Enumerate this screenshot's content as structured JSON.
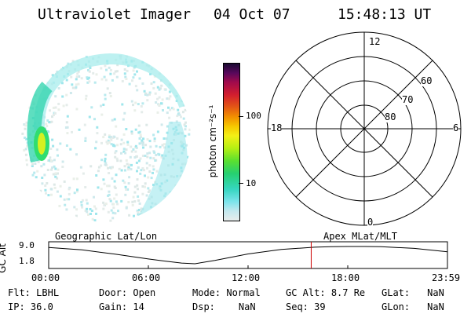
{
  "header": {
    "title": "Ultraviolet Imager",
    "date": "04 Oct 07",
    "time": "15:48:13 UT"
  },
  "colorbar": {
    "unit_label": "photon cm⁻²s⁻¹",
    "ticks": [
      "100",
      "10"
    ]
  },
  "polar": {
    "mlt_labels": {
      "top": "12",
      "left": "18",
      "right": "6",
      "bottom": "0"
    },
    "lat_labels": [
      "60",
      "70",
      "80"
    ]
  },
  "timeline": {
    "left_label": "Geographic Lat/Lon",
    "right_label": "Apex MLat/MLT",
    "y_title": "GC Alt",
    "y_ticks": [
      "9.0",
      "1.8"
    ],
    "x_ticks": [
      "00:00",
      "06:00",
      "12:00",
      "18:00",
      "23:59"
    ],
    "altitude_profile": {
      "x_hours": [
        0,
        2,
        4,
        6,
        7,
        8,
        8.8,
        10,
        12,
        14,
        16,
        17,
        18,
        19,
        20,
        22,
        24
      ],
      "y_re": [
        8.6,
        7.6,
        5.8,
        3.8,
        2.9,
        2.1,
        1.8,
        3.2,
        5.9,
        7.8,
        8.7,
        8.9,
        9.0,
        9.0,
        8.9,
        8.2,
        6.8
      ]
    },
    "marker_time_hours": 15.8,
    "marker_color": "#cc0000"
  },
  "status": {
    "row1": [
      {
        "k": "Flt:",
        "v": "LBHL"
      },
      {
        "k": "Door:",
        "v": "Open"
      },
      {
        "k": "Mode:",
        "v": "Normal"
      },
      {
        "k": "GC Alt:",
        "v": "8.7 Re"
      },
      {
        "k": "GLat:",
        "v": "NaN"
      }
    ],
    "row2": [
      {
        "k": "IP:",
        "v": "36.0"
      },
      {
        "k": "Gain:",
        "v": "14"
      },
      {
        "k": "Dsp:",
        "v": "NaN"
      },
      {
        "k": "Seq:",
        "v": "39"
      },
      {
        "k": "GLon:",
        "v": "NaN"
      }
    ]
  }
}
